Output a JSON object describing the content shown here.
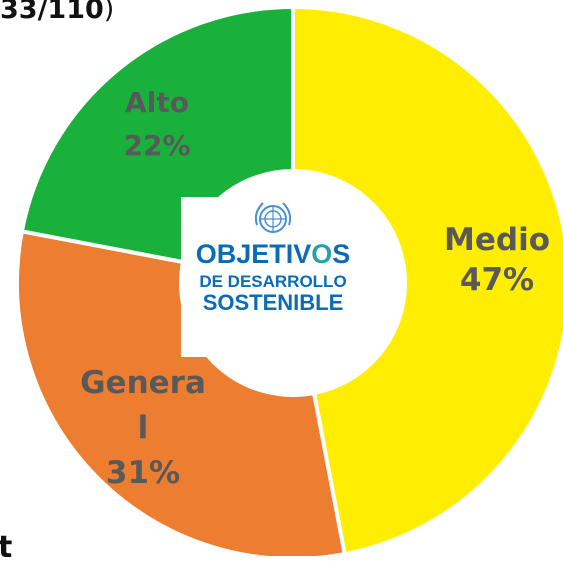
{
  "header": {
    "text": "33/110",
    "close": ")"
  },
  "footer": {
    "text": "t"
  },
  "logo": {
    "line1_prefix": "OBJETIV",
    "line1_o": "O",
    "line1_suffix": "S",
    "line2": "DE DESARROLLO",
    "line3": "SOSTENIBLE"
  },
  "chart_data": {
    "type": "pie",
    "title": "",
    "slices": [
      {
        "label": "Medio",
        "value": 47,
        "display": "47%",
        "color": "#ffee00",
        "label_lines": [
          "Medio",
          "47%"
        ]
      },
      {
        "label": "General",
        "value": 31,
        "display": "31%",
        "color": "#ed7d31",
        "label_lines": [
          "Genera",
          "l",
          "31%"
        ]
      },
      {
        "label": "Alto",
        "value": 22,
        "display": "22%",
        "color": "#1ab03c",
        "label_lines": [
          "Alto",
          "22%"
        ]
      }
    ],
    "donut": true,
    "start_angle_deg": 0,
    "legend": "none"
  }
}
